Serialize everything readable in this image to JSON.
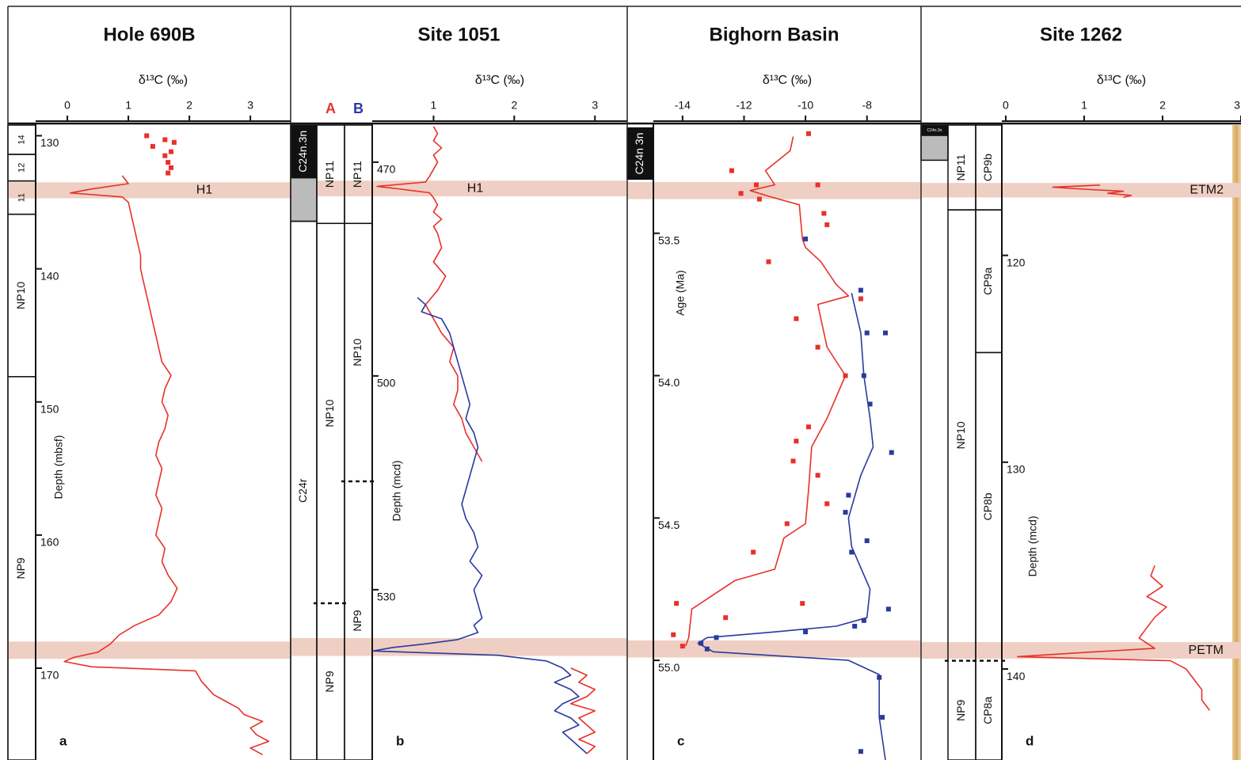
{
  "chart_data": [
    {
      "type": "line",
      "title": "Hole 690B",
      "xlabel": "δ¹³C (‰)",
      "ylabel": "Depth (mbsf)",
      "panel_label": "a",
      "xlim": [
        -0.52,
        3.66
      ],
      "xticks": [
        0,
        1,
        2,
        3
      ],
      "ylim": [
        129.2,
        176.9
      ],
      "yticks": [
        130,
        140,
        150,
        160,
        170
      ],
      "band_color": "#efcfc3",
      "bands": [
        {
          "label": "H1",
          "from": 133.5,
          "to": 134.7
        },
        {
          "from": 168.0,
          "to": 169.3
        }
      ],
      "columns": [
        {
          "zones": [
            {
              "label": "14",
              "from": 129.2,
              "to": 131.4
            },
            {
              "label": "12",
              "from": 131.4,
              "to": 133.4
            },
            {
              "label": "11",
              "from": 133.4,
              "to": 135.9
            },
            {
              "label": "NP10",
              "from": 135.9,
              "to": 148.1
            },
            {
              "label": "NP9",
              "from": 148.1,
              "to": 176.9
            }
          ]
        }
      ],
      "series": [
        {
          "color": "#e8302a",
          "mode": "markers",
          "x": [
            1.3,
            1.6,
            1.75,
            1.4,
            1.7,
            1.6,
            1.65,
            1.7,
            1.65
          ],
          "y": [
            130,
            130.3,
            130.5,
            130.8,
            131.2,
            131.5,
            132,
            132.4,
            132.8
          ]
        },
        {
          "color": "#e8302a",
          "mode": "lines",
          "x": [
            0.9,
            1.0,
            0.4,
            0.05,
            0.9,
            1.0,
            1.05,
            1.1,
            1.15,
            1.2,
            1.2,
            1.25,
            1.3,
            1.35,
            1.4,
            1.45,
            1.5,
            1.55,
            1.7,
            1.6,
            1.55,
            1.65,
            1.6,
            1.5,
            1.45,
            1.55,
            1.5,
            1.45,
            1.55,
            1.5,
            1.45,
            1.6,
            1.55,
            1.65,
            1.8,
            1.7,
            1.5,
            1.1,
            0.85,
            0.7,
            0.5,
            0.1,
            -0.05,
            0.4,
            2.1,
            2.2,
            2.4,
            2.6,
            2.8,
            2.9,
            3.2,
            3.0,
            3.1,
            3.3,
            3.0,
            3.2
          ],
          "y": [
            133.0,
            133.6,
            134.0,
            134.3,
            134.6,
            135.0,
            136.0,
            137,
            138,
            139,
            140,
            141,
            142,
            143,
            144,
            145,
            146,
            147,
            148,
            149,
            150,
            151,
            152,
            153,
            154,
            155,
            156,
            157,
            158,
            159,
            160,
            161,
            162,
            163,
            164,
            165,
            166,
            166.8,
            167.5,
            168.2,
            168.8,
            169.2,
            169.5,
            169.9,
            170.2,
            171,
            172,
            172.5,
            173,
            173.5,
            174,
            174.5,
            175,
            175.5,
            176,
            176.5
          ]
        }
      ]
    },
    {
      "type": "line",
      "title": "Site 1051",
      "xlabel": "δ¹³C (‰)",
      "ylabel": "Depth (mcd)",
      "panel_label": "b",
      "xlim": [
        0.24,
        3.4
      ],
      "xticks": [
        1,
        2,
        3
      ],
      "ylim": [
        464.8,
        553.9
      ],
      "yticks": [
        470,
        500,
        530
      ],
      "band_color": "#efcfc3",
      "bands": [
        {
          "label": "H1",
          "from": 472.6,
          "to": 474.8
        },
        {
          "from": 536.8,
          "to": 539.3
        }
      ],
      "columns": [
        {
          "zones": [
            {
              "label": "C24n.3n",
              "from": 464.8,
              "to": 472.2,
              "fill": "#111111"
            },
            {
              "from": 472.2,
              "to": 478.3,
              "fill": "#bbbbbb"
            },
            {
              "label": "C24r",
              "from": 478.3,
              "to": 553.9
            }
          ]
        },
        {
          "heading": "A",
          "color": "#e8302a",
          "zones": [
            {
              "label": "NP11",
              "from": 464.8,
              "to": 478.6
            },
            {
              "label": "NP10",
              "from": 478.6,
              "to": 531.9
            },
            {
              "label": "NP9",
              "from": 531.9,
              "to": 553.9,
              "dashed": true
            }
          ]
        },
        {
          "heading": "B",
          "color": "#2a3a9e",
          "zones": [
            {
              "label": "NP11",
              "from": 464.8,
              "to": 478.6
            },
            {
              "label": "NP10",
              "from": 478.6,
              "to": 514.8
            },
            {
              "label": "NP9",
              "from": 514.8,
              "to": 553.9,
              "dashed": true
            }
          ]
        }
      ],
      "series": [
        {
          "color": "#e8302a",
          "mode": "lines",
          "x": [
            1.0,
            1.05,
            1.0,
            1.1,
            1.0,
            1.05,
            1.0,
            0.95,
            0.9,
            0.3,
            0.6,
            0.95,
            1.0,
            1.05,
            1.0,
            1.1,
            1.0,
            1.05,
            1.1,
            1.0,
            1.15,
            1.05,
            0.9,
            1.0,
            1.1,
            1.25,
            1.2,
            1.3,
            1.3,
            1.25,
            1.35,
            1.4,
            1.5,
            1.6,
            null,
            2.7,
            2.9,
            2.8,
            3.0,
            2.9,
            2.7,
            3.0,
            2.8,
            2.9,
            3.0,
            2.8,
            3.0,
            2.9
          ],
          "y": [
            465,
            466,
            467,
            468,
            469,
            470,
            471,
            472,
            472.8,
            473.4,
            473.8,
            474.3,
            475,
            476,
            477,
            478,
            479,
            480,
            482,
            484,
            486,
            488,
            490,
            492,
            494,
            496,
            498,
            500,
            502,
            504,
            506,
            508,
            510,
            512,
            null,
            541,
            542,
            543,
            544,
            545,
            546,
            547,
            548,
            549,
            550,
            551,
            552,
            553
          ]
        },
        {
          "color": "#2a3a9e",
          "mode": "lines",
          "x": [
            0.8,
            0.9,
            0.85,
            1.1,
            1.2,
            1.25,
            1.3,
            1.35,
            1.4,
            1.45,
            1.4,
            1.5,
            1.55,
            1.5,
            1.45,
            1.4,
            1.35,
            1.4,
            1.5,
            1.55,
            1.45,
            1.6,
            1.5,
            1.55,
            1.6,
            1.5,
            1.55,
            1.3,
            0.9,
            0.5,
            0.25,
            1.8,
            2.4,
            2.6,
            2.7,
            2.5,
            2.7,
            2.8,
            2.6,
            2.5,
            2.7,
            2.8,
            2.6,
            2.7,
            2.8,
            2.9
          ],
          "y": [
            489,
            490,
            491,
            492,
            494,
            496,
            498,
            500,
            502,
            504,
            506,
            508,
            510,
            512,
            514,
            516,
            518,
            520,
            522,
            524,
            526,
            528,
            530,
            532,
            534,
            535,
            536,
            537,
            537.6,
            538.1,
            538.6,
            539.2,
            540,
            541,
            542,
            543,
            544,
            545,
            546,
            547,
            548,
            549,
            550,
            551,
            552,
            553
          ]
        }
      ]
    },
    {
      "type": "line",
      "title": "Bighorn Basin",
      "xlabel": "δ¹³C (‰)",
      "ylabel": "Age (Ma)",
      "panel_label": "c",
      "xlim": [
        -14.95,
        -6.24
      ],
      "xticks": [
        -14,
        -12,
        -10,
        -8
      ],
      "ylim": [
        53.12,
        55.35
      ],
      "yticks": [
        53.5,
        {
          "value": 54,
          "label": "54.0"
        },
        54.5,
        {
          "value": 55,
          "label": "55.0"
        }
      ],
      "band_color": "#efcfc3",
      "bands": [
        {
          "from": 53.32,
          "to": 53.38
        },
        {
          "from": 54.93,
          "to": 54.99
        }
      ],
      "columns": [
        {
          "zones": [
            {
              "label": "C24n 3n",
              "from": 53.13,
              "to": 53.31,
              "fill": "#111111"
            }
          ]
        }
      ],
      "series": [
        {
          "color": "#e8302a",
          "mode": "lines",
          "x": [
            -10.4,
            -10.5,
            -11.3,
            -11.0,
            -11.8,
            -11.2,
            -10.2,
            -10.1,
            -10.0,
            -9.5,
            -9.0,
            -8.6,
            -9.6,
            -9.3,
            -8.7,
            -9.3,
            -9.8,
            -9.9,
            -10.0,
            -10.7,
            -11.0,
            -12.3,
            -13.7,
            -13.8,
            -13.9
          ],
          "y": [
            53.16,
            53.21,
            53.28,
            53.33,
            53.35,
            53.37,
            53.4,
            53.52,
            53.55,
            53.6,
            53.68,
            53.72,
            53.75,
            53.9,
            54.0,
            54.15,
            54.25,
            54.4,
            54.52,
            54.57,
            54.68,
            54.72,
            54.82,
            54.92,
            54.95
          ]
        },
        {
          "color": "#2a3a9e",
          "mode": "lines",
          "x": [
            -8.5,
            -8.2,
            -8.1,
            -7.9,
            -7.8,
            -8.2,
            -8.6,
            -8.5,
            -7.9,
            -8.0,
            -9.0,
            -11.0,
            -13.2,
            -13.5,
            -13.0,
            -8.6,
            -7.6,
            -7.6,
            -7.4
          ],
          "y": [
            53.71,
            53.85,
            54.0,
            54.15,
            54.25,
            54.35,
            54.5,
            54.6,
            54.75,
            54.85,
            54.88,
            54.9,
            54.92,
            54.94,
            54.97,
            55.0,
            55.05,
            55.2,
            55.35
          ]
        },
        {
          "color": "#e8302a",
          "mode": "markers",
          "x": [
            -9.9,
            -12.4,
            -11.6,
            -12.1,
            -11.5,
            -9.6,
            -9.4,
            -9.3,
            -11.2,
            -8.2,
            -10.3,
            -9.6,
            -8.7,
            -9.9,
            -10.3,
            -10.4,
            -9.6,
            -9.3,
            -10.6,
            -11.7,
            -10.1,
            -14.2,
            -12.6,
            -14.3,
            -14.0
          ],
          "y": [
            53.15,
            53.28,
            53.33,
            53.36,
            53.38,
            53.33,
            53.43,
            53.47,
            53.6,
            53.73,
            53.8,
            53.9,
            54.0,
            54.18,
            54.23,
            54.3,
            54.35,
            54.45,
            54.52,
            54.62,
            54.8,
            54.8,
            54.85,
            54.91,
            54.95
          ]
        },
        {
          "color": "#2a3a9e",
          "mode": "markers",
          "x": [
            -10.0,
            -8.2,
            -7.4,
            -8.0,
            -8.1,
            -7.9,
            -7.2,
            -8.6,
            -8.7,
            -8.0,
            -8.5,
            -7.3,
            -8.1,
            -8.4,
            -10.0,
            -12.9,
            -13.4,
            -13.2,
            -7.6,
            -7.5,
            -8.2
          ],
          "y": [
            53.52,
            53.7,
            53.85,
            53.85,
            54.0,
            54.1,
            54.27,
            54.42,
            54.48,
            54.58,
            54.62,
            54.82,
            54.86,
            54.88,
            54.9,
            54.92,
            54.94,
            54.96,
            55.06,
            55.2,
            55.32
          ]
        }
      ]
    },
    {
      "type": "line",
      "title": "Site 1262",
      "xlabel": "δ¹³C (‰)",
      "ylabel": "Depth (mcd)",
      "panel_label": "d",
      "xlim": [
        -0.05,
        3.0
      ],
      "xticks": [
        0,
        1,
        2,
        3
      ],
      "ylim": [
        113.7,
        144.4
      ],
      "yticks": [
        120,
        130,
        140
      ],
      "band_color": "#efcfc3",
      "bands": [
        {
          "label": "ETM2",
          "from": 116.5,
          "to": 117.2
        },
        {
          "label": "PETM",
          "from": 138.7,
          "to": 139.5
        }
      ],
      "columns": [
        {
          "zones": [
            {
              "label": "C24n.3n",
              "from": 113.7,
              "to": 114.2,
              "fill": "#111111"
            },
            {
              "from": 114.2,
              "to": 115.4,
              "fill": "#bbbbbb"
            }
          ]
        },
        {
          "zones": [
            {
              "label": "NP11",
              "from": 113.7,
              "to": 117.8
            },
            {
              "label": "NP10",
              "from": 117.8,
              "to": 139.6
            },
            {
              "label": "NP9",
              "from": 139.6,
              "to": 144.4,
              "dashed": true
            }
          ]
        },
        {
          "zones": [
            {
              "label": "CP9b",
              "from": 113.7,
              "to": 117.8
            },
            {
              "label": "CP9a",
              "from": 117.8,
              "to": 124.7
            },
            {
              "label": "CP8b",
              "from": 124.7,
              "to": 139.6
            },
            {
              "label": "CP8a",
              "from": 139.6,
              "to": 144.4,
              "dashed": true
            }
          ]
        }
      ],
      "series": [
        {
          "color": "#e8302a",
          "mode": "lines",
          "x": [
            1.2,
            0.6,
            1.0,
            1.5,
            1.3,
            1.6,
            1.5,
            null,
            1.9,
            1.85,
            2.0,
            1.8,
            2.05,
            1.9,
            1.8,
            1.7,
            1.9,
            1.0,
            0.15,
            2.1,
            2.3,
            2.4,
            2.5,
            2.5,
            2.6
          ],
          "y": [
            116.6,
            116.7,
            116.8,
            116.9,
            117.0,
            117.1,
            117.2,
            null,
            135.0,
            135.5,
            136.0,
            136.5,
            137.0,
            137.5,
            138.0,
            138.5,
            139.0,
            139.2,
            139.4,
            139.6,
            140.0,
            140.5,
            141.0,
            141.5,
            142.0
          ]
        }
      ]
    }
  ]
}
